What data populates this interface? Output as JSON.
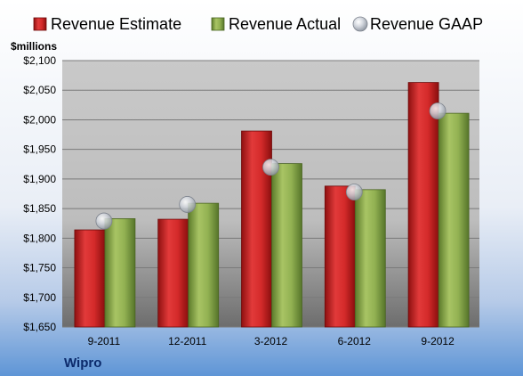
{
  "chart_data": {
    "type": "bar",
    "company": "Wipro",
    "ylabel": "$millions",
    "legend_position": "top",
    "categories": [
      "9-2011",
      "12-2011",
      "3-2012",
      "6-2012",
      "9-2012"
    ],
    "ylim": [
      1650,
      2100
    ],
    "yticks": [
      1650,
      1700,
      1750,
      1800,
      1850,
      1900,
      1950,
      2000,
      2050,
      2100
    ],
    "ytick_labels": [
      "$1,650",
      "$1,700",
      "$1,750",
      "$1,800",
      "$1,850",
      "$1,900",
      "$1,950",
      "$2,000",
      "$2,050",
      "$2,100"
    ],
    "grid": true,
    "series": [
      {
        "name": "Revenue Estimate",
        "kind": "bar",
        "color": "#d42a2a",
        "values": [
          1814,
          1832,
          1981,
          1888,
          2063
        ]
      },
      {
        "name": "Revenue Actual",
        "kind": "bar",
        "color": "#8fae4e",
        "values": [
          1833,
          1859,
          1926,
          1882,
          2011
        ]
      },
      {
        "name": "Revenue GAAP",
        "kind": "marker",
        "color": "#b8bec8",
        "values": [
          1829,
          1857,
          1920,
          1878,
          2015
        ]
      }
    ]
  }
}
